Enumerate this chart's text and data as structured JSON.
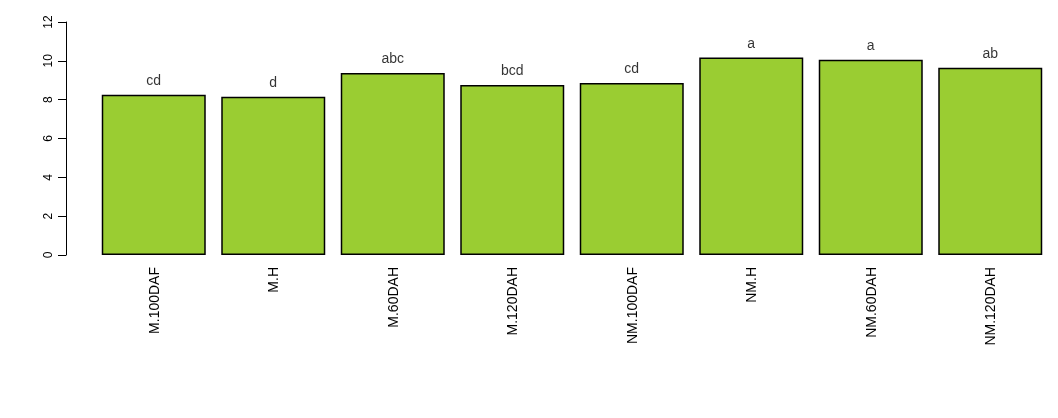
{
  "chart_data": {
    "type": "bar",
    "categories": [
      "M.100DAF",
      "M.H",
      "M.60DAH",
      "M.120DAH",
      "NM.100DAF",
      "NM.H",
      "NM.60DAH",
      "NM.120DAH"
    ],
    "values": [
      8.25,
      8.15,
      9.37,
      8.75,
      8.86,
      10.17,
      10.05,
      9.64
    ],
    "color": "#9acd32",
    "ylim": [
      0,
      12
    ],
    "yticks": [
      0,
      2,
      4,
      6,
      8,
      10,
      12
    ],
    "grid": false,
    "annotations": [
      {
        "text": "cd",
        "x": "M.100DAF",
        "y": 8.25
      },
      {
        "text": "d",
        "x": "M.H",
        "y": 8.15
      },
      {
        "text": "abc",
        "x": "M.60DAH",
        "y": 9.37
      },
      {
        "text": "bcd",
        "x": "M.120DAH",
        "y": 8.75
      },
      {
        "text": "cd",
        "x": "NM.100DAF",
        "y": 8.86
      },
      {
        "text": "a",
        "x": "NM.H",
        "y": 10.17
      },
      {
        "text": "a",
        "x": "NM.60DAH",
        "y": 10.05
      },
      {
        "text": "ab",
        "x": "NM.120DAH",
        "y": 9.64
      }
    ]
  }
}
